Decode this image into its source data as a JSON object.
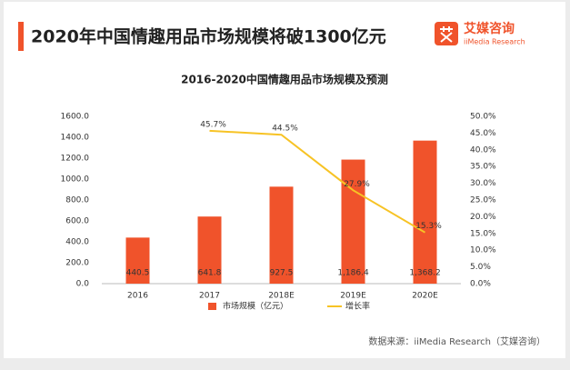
{
  "header": {
    "title": "2020年中国情趣用品市场规模将破1300亿元",
    "logo": "艾媒咨询",
    "logo_sub": "iiMedia Research"
  },
  "chart_data": {
    "type": "bar",
    "title": "2016-2020中国情趣用品市场规模及预测",
    "categories": [
      "2016",
      "2017",
      "2018E",
      "2019E",
      "2020E"
    ],
    "series": [
      {
        "name": "市场规模（亿元）",
        "type": "bar",
        "color": "#f0532b",
        "values": [
          440.5,
          641.8,
          927.5,
          1186.4,
          1368.2
        ],
        "value_labels": [
          "440.5",
          "641.8",
          "927.5",
          "1,186.4",
          "1,368.2"
        ]
      },
      {
        "name": "增长率",
        "type": "line",
        "axis": "y2",
        "color": "#f7c325",
        "values": [
          null,
          45.7,
          44.5,
          27.9,
          15.3
        ],
        "value_labels": [
          null,
          "45.7%",
          "44.5%",
          "27.9%",
          "15.3%"
        ]
      }
    ],
    "ylim": [
      0,
      1600
    ],
    "yticks": [
      {
        "value": 0,
        "label": "0.0"
      },
      {
        "value": 200,
        "label": "200.0"
      },
      {
        "value": 400,
        "label": "400.0"
      },
      {
        "value": 600,
        "label": "600.0"
      },
      {
        "value": 800,
        "label": "800.0"
      },
      {
        "value": 1000,
        "label": "1000.0"
      },
      {
        "value": 1200,
        "label": "1200.0"
      },
      {
        "value": 1400,
        "label": "1400.0"
      },
      {
        "value": 1600,
        "label": "1600.0"
      }
    ],
    "y2lim": [
      0,
      50
    ],
    "y2ticks": [
      {
        "value": 0,
        "label": "0.0%"
      },
      {
        "value": 5,
        "label": "5.0%"
      },
      {
        "value": 10,
        "label": "10.0%"
      },
      {
        "value": 15,
        "label": "15.0%"
      },
      {
        "value": 20,
        "label": "20.0%"
      },
      {
        "value": 25,
        "label": "25.0%"
      },
      {
        "value": 30,
        "label": "30.0%"
      },
      {
        "value": 35,
        "label": "35.0%"
      },
      {
        "value": 40,
        "label": "40.0%"
      },
      {
        "value": 45,
        "label": "45.0%"
      },
      {
        "value": 50,
        "label": "50.0%"
      }
    ],
    "source": "数据来源：iiMedia Research（艾媒咨询）"
  }
}
